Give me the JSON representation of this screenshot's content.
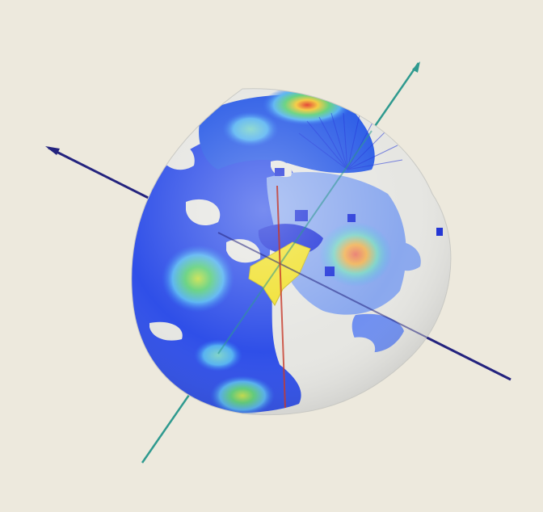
{
  "viewport": {
    "background": "#ede9dd",
    "object": "sphere-heatmap"
  },
  "axes": {
    "navy_color": "#24237e",
    "teal_color": "#2f9a8f",
    "red_color": "#c83a2a"
  },
  "heatmap": {
    "palette": [
      "#1b2fd8",
      "#2f6cf0",
      "#55b2f2",
      "#7fd4c8",
      "#5fd07a",
      "#c8e04a",
      "#f5c93a",
      "#e23a2a"
    ],
    "highlight_color": "#f0e02a",
    "base_color": "#e6e6e2"
  }
}
